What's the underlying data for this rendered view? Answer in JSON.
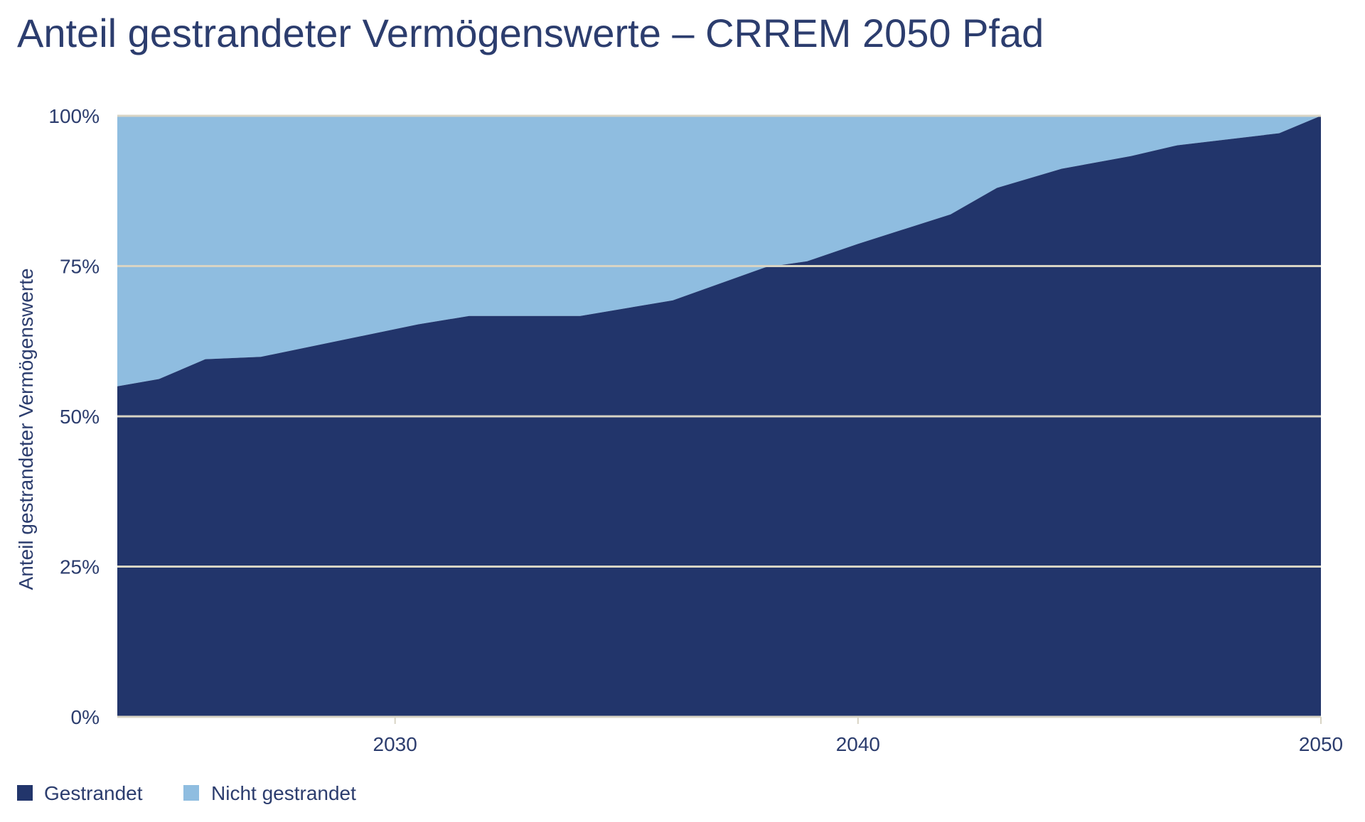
{
  "chart_data": {
    "type": "area",
    "stacked": true,
    "title": "Anteil gestrandeter Vermögenswerte – CRREM 2050 Pfad",
    "xlabel": "",
    "ylabel": "Anteil gestrandeter Vermögenswerte",
    "xlim": [
      2024,
      2050
    ],
    "ylim": [
      0,
      100
    ],
    "x_ticks": [
      2030,
      2040,
      2050
    ],
    "x_tick_labels": [
      "2030",
      "2040",
      "2050"
    ],
    "y_ticks": [
      0,
      25,
      50,
      75,
      100
    ],
    "y_tick_labels": [
      "0%",
      "25%",
      "50%",
      "75%",
      "100%"
    ],
    "grid": "horizontal",
    "legend_position": "bottom-left",
    "x": [
      2024,
      2024.9,
      2025.9,
      2027.1,
      2030.5,
      2031.6,
      2034.0,
      2036.0,
      2038.0,
      2038.9,
      2040.0,
      2042.0,
      2043.0,
      2044.4,
      2045.9,
      2046.9,
      2049.1,
      2050
    ],
    "series": [
      {
        "name": "Gestrandet",
        "color": "#22356b",
        "values": [
          55.0,
          56.2,
          59.5,
          59.9,
          65.3,
          66.7,
          66.7,
          69.3,
          74.8,
          75.8,
          78.7,
          83.6,
          88.0,
          91.2,
          93.3,
          95.1,
          97.1,
          100.0
        ]
      },
      {
        "name": "Nicht gestrandet",
        "color": "#8fbde0",
        "values": [
          45.0,
          43.8,
          40.5,
          40.1,
          34.7,
          33.3,
          33.3,
          30.7,
          25.2,
          24.2,
          21.3,
          16.4,
          12.0,
          8.8,
          6.7,
          4.9,
          2.9,
          0.0
        ]
      }
    ],
    "gridline_color": "#d8d4c4"
  }
}
